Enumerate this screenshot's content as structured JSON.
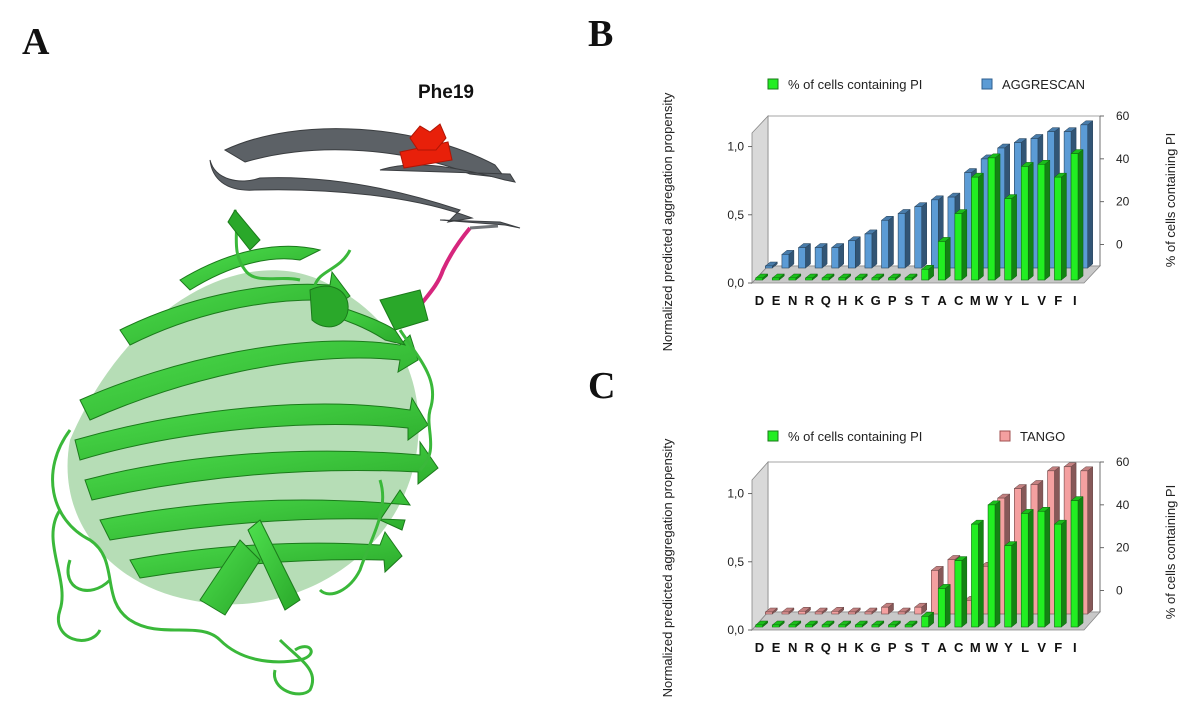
{
  "panels": {
    "a_letter": "A",
    "b_letter": "B",
    "c_letter": "C"
  },
  "structure": {
    "residue_label": "Phe19",
    "colors": {
      "fusion_peptide": "#555a5f",
      "highlight_residue": "#e8200a",
      "linker": "#d6267d",
      "gfp": "#33cc33",
      "gfp_dark": "#1e8f1e"
    }
  },
  "chart_data": [
    {
      "type": "bar",
      "panel": "B",
      "categories": [
        "D",
        "E",
        "N",
        "R",
        "Q",
        "H",
        "K",
        "G",
        "P",
        "S",
        "T",
        "A",
        "C",
        "M",
        "W",
        "Y",
        "L",
        "V",
        "F",
        "I"
      ],
      "ylabel": "Normalized predicted aggregation propensity",
      "y2label": "% of cells containing PI",
      "y_ticks": [
        "0,0",
        "0,5",
        "1,0"
      ],
      "y2_ticks": [
        "0",
        "20",
        "40",
        "60"
      ],
      "ylim": [
        0,
        1.1
      ],
      "y2lim": [
        -10,
        60
      ],
      "legend_position": "top",
      "series": [
        {
          "name": "% of cells containing PI",
          "axis": "secondary",
          "color": "#22ee22",
          "values": [
            0,
            0,
            0,
            0,
            0,
            0,
            0,
            0,
            0,
            0,
            5,
            18,
            31,
            48,
            57,
            38,
            53,
            54,
            48,
            59
          ]
        },
        {
          "name": "AGGRESCAN",
          "axis": "primary",
          "color": "#5b9bd5",
          "values": [
            0.0,
            0.1,
            0.15,
            0.15,
            0.15,
            0.2,
            0.25,
            0.35,
            0.4,
            0.45,
            0.5,
            0.52,
            0.7,
            0.8,
            0.88,
            0.92,
            0.95,
            1.0,
            1.0,
            1.05
          ]
        }
      ]
    },
    {
      "type": "bar",
      "panel": "C",
      "categories": [
        "D",
        "E",
        "N",
        "R",
        "Q",
        "H",
        "K",
        "G",
        "P",
        "S",
        "T",
        "A",
        "C",
        "M",
        "W",
        "Y",
        "L",
        "V",
        "F",
        "I"
      ],
      "ylabel": "Normalized predicted aggregation propensity",
      "y2label": "% of cells containing PI",
      "y_ticks": [
        "0,0",
        "0,5",
        "1,0"
      ],
      "y2_ticks": [
        "0",
        "20",
        "40",
        "60"
      ],
      "ylim": [
        0,
        1.1
      ],
      "y2lim": [
        -10,
        60
      ],
      "legend_position": "top",
      "series": [
        {
          "name": "% of cells containing PI",
          "axis": "secondary",
          "color": "#22ee22",
          "values": [
            0,
            0,
            0,
            0,
            0,
            0,
            0,
            0,
            0,
            0,
            5,
            18,
            31,
            48,
            57,
            38,
            53,
            54,
            48,
            59
          ]
        },
        {
          "name": "TANGO",
          "axis": "primary",
          "color": "#f4a0a0",
          "values": [
            0.0,
            0.0,
            0.02,
            0.0,
            0.02,
            0.0,
            0.0,
            0.05,
            0.0,
            0.05,
            0.32,
            0.4,
            0.1,
            0.35,
            0.85,
            0.92,
            0.95,
            1.05,
            1.08,
            1.05
          ]
        }
      ]
    }
  ]
}
